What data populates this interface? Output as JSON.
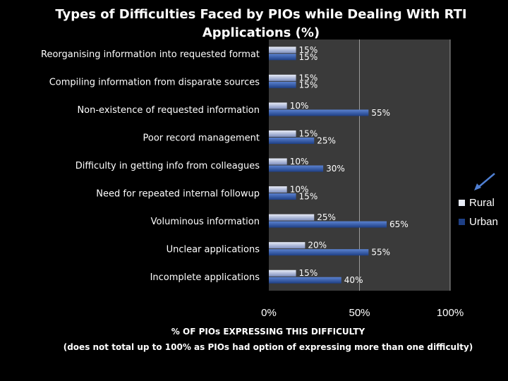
{
  "colors": {
    "background": "#000000",
    "plot_area": "#3a3a3a",
    "gridline": "#9a9a9a",
    "rural_top": "#e8ecf7",
    "rural_bottom": "#7e8fbf",
    "urban_top": "#5b82d0",
    "urban_bottom": "#1e3f85",
    "arrow": "#4f7fd2",
    "text": "#ffffff"
  },
  "chart_data": {
    "type": "bar",
    "orientation": "horizontal",
    "title": "Types of Difficulties Faced by PIOs while Dealing With RTI Applications (%)",
    "xlabel": "% OF PIOs EXPRESSING THIS DIFFICULTY",
    "note": "(does not total up to 100% as PIOs had option of expressing more than one difficulty)",
    "xlim": [
      0,
      100
    ],
    "x_ticks": [
      "0%",
      "50%",
      "100%"
    ],
    "x_tick_values": [
      0,
      50,
      100
    ],
    "grid": true,
    "legend_position": "right",
    "categories": [
      "Reorganising information into requested format",
      "Compiling information from disparate sources",
      "Non-existence of requested information",
      "Poor record management",
      "Difficulty in getting info from colleagues",
      "Need for repeated internal followup",
      "Voluminous information",
      "Unclear applications",
      "Incomplete applications"
    ],
    "series": [
      {
        "name": "Rural",
        "values": [
          15,
          15,
          10,
          15,
          10,
          10,
          25,
          20,
          15
        ],
        "labels": [
          "15%",
          "15%",
          "10%",
          "15%",
          "10%",
          "10%",
          "25%",
          "20%",
          "15%"
        ]
      },
      {
        "name": "Urban",
        "values": [
          15,
          15,
          55,
          25,
          30,
          15,
          65,
          55,
          40
        ],
        "labels": [
          "15%",
          "15%",
          "55%",
          "25%",
          "30%",
          "15%",
          "65%",
          "55%",
          "40%"
        ]
      }
    ]
  }
}
